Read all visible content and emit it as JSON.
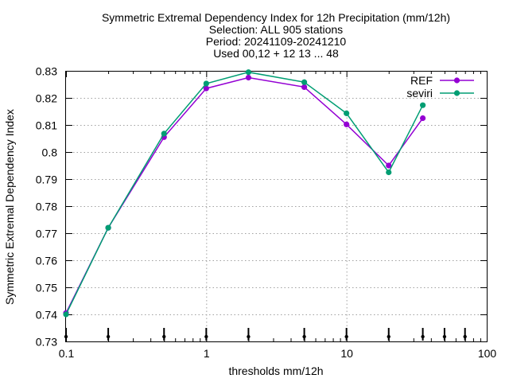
{
  "chart_data": {
    "type": "line",
    "title_lines": [
      "Symmetric Extremal Dependency Index  for 12h Precipitation (mm/12h)",
      "Selection: ALL    905 stations",
      "Period: 20241109-20241210",
      "Used 00,12 + 12 13 ... 48"
    ],
    "xlabel": "thresholds mm/12h",
    "ylabel": "Symmetric Extremal Dependency Index",
    "x_scale": "log",
    "xlim": [
      0.1,
      100
    ],
    "ylim": [
      0.73,
      0.83
    ],
    "x_ticks": [
      {
        "value": 0.1,
        "label": "0.1"
      },
      {
        "value": 1,
        "label": "1"
      },
      {
        "value": 10,
        "label": "10"
      },
      {
        "value": 100,
        "label": "100"
      }
    ],
    "y_ticks": [
      {
        "value": 0.73,
        "label": "0.73"
      },
      {
        "value": 0.74,
        "label": "0.74"
      },
      {
        "value": 0.75,
        "label": "0.75"
      },
      {
        "value": 0.76,
        "label": "0.76"
      },
      {
        "value": 0.77,
        "label": "0.77"
      },
      {
        "value": 0.78,
        "label": "0.78"
      },
      {
        "value": 0.79,
        "label": "0.79"
      },
      {
        "value": 0.8,
        "label": "0.8"
      },
      {
        "value": 0.81,
        "label": "0.81"
      },
      {
        "value": 0.82,
        "label": "0.82"
      },
      {
        "value": 0.83,
        "label": "0.83"
      }
    ],
    "grid": true,
    "legend_position": "top-right",
    "threshold_markers": [
      0.1,
      0.2,
      0.5,
      1,
      2,
      5,
      10,
      20,
      35,
      50,
      70
    ],
    "series": [
      {
        "name": "REF",
        "color": "#9400d3",
        "x": [
          0.1,
          0.2,
          0.5,
          1,
          2,
          5,
          10,
          20,
          35
        ],
        "y": [
          0.7405,
          0.772,
          0.8055,
          0.8235,
          0.8275,
          0.824,
          0.8102,
          0.795,
          0.8125
        ]
      },
      {
        "name": "seviri",
        "color": "#009e73",
        "x": [
          0.1,
          0.2,
          0.5,
          1,
          2,
          5,
          10,
          20,
          35
        ],
        "y": [
          0.74,
          0.772,
          0.8068,
          0.8253,
          0.8295,
          0.8258,
          0.8143,
          0.7925,
          0.8173
        ]
      }
    ]
  }
}
